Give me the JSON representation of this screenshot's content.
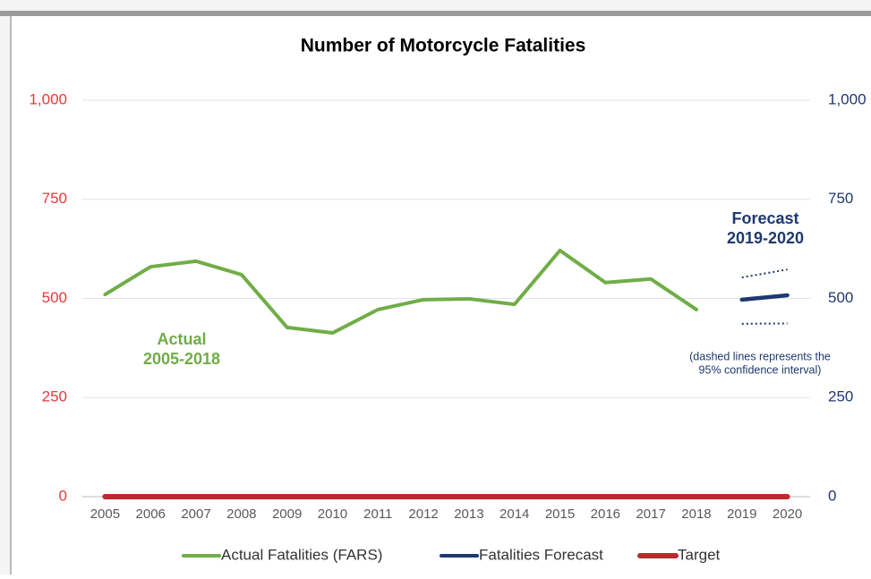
{
  "chart_data": {
    "type": "line",
    "title": "Number of Motorcycle Fatalities",
    "categories": [
      "2005",
      "2006",
      "2007",
      "2008",
      "2009",
      "2010",
      "2011",
      "2012",
      "2013",
      "2014",
      "2015",
      "2016",
      "2017",
      "2018",
      "2019",
      "2020"
    ],
    "series": [
      {
        "name": "Actual Fatalities (FARS)",
        "color": "#70ad47",
        "values": [
          510,
          580,
          594,
          560,
          427,
          413,
          472,
          497,
          499,
          485,
          621,
          540,
          549,
          472,
          null,
          null
        ]
      },
      {
        "name": "Fatalities Forecast",
        "color": "#1f3870",
        "values": [
          null,
          null,
          null,
          null,
          null,
          null,
          null,
          null,
          null,
          null,
          null,
          null,
          null,
          null,
          497,
          508
        ]
      },
      {
        "name": "Target",
        "color": "#c0282d",
        "values": [
          0,
          0,
          0,
          0,
          0,
          0,
          0,
          0,
          0,
          0,
          0,
          0,
          0,
          0,
          0,
          0
        ]
      }
    ],
    "confidence_interval": {
      "color": "#1f3870",
      "upper": [
        null,
        null,
        null,
        null,
        null,
        null,
        null,
        null,
        null,
        null,
        null,
        null,
        null,
        null,
        553,
        573
      ],
      "lower": [
        null,
        null,
        null,
        null,
        null,
        null,
        null,
        null,
        null,
        null,
        null,
        null,
        null,
        null,
        436,
        437
      ]
    },
    "ylim": [
      0,
      1000
    ],
    "yticks": [
      0,
      250,
      500,
      750,
      {
        "value": 1000,
        "label": "1,000"
      }
    ],
    "y2lim": [
      0,
      1000
    ],
    "y2ticks": [
      0,
      250,
      500,
      750,
      {
        "value": 1000,
        "label": "1,000"
      }
    ],
    "grid": true,
    "legend": "bottom",
    "annotations": [
      {
        "lines": [
          "Actual",
          "2005-2018"
        ],
        "color": "#70ad47"
      },
      {
        "lines": [
          "Forecast",
          "2019-2020"
        ],
        "color": "#1f3870"
      },
      {
        "lines": [
          "(dashed lines represents the",
          "95% confidence interval)"
        ],
        "color": "#1f3870"
      }
    ]
  }
}
